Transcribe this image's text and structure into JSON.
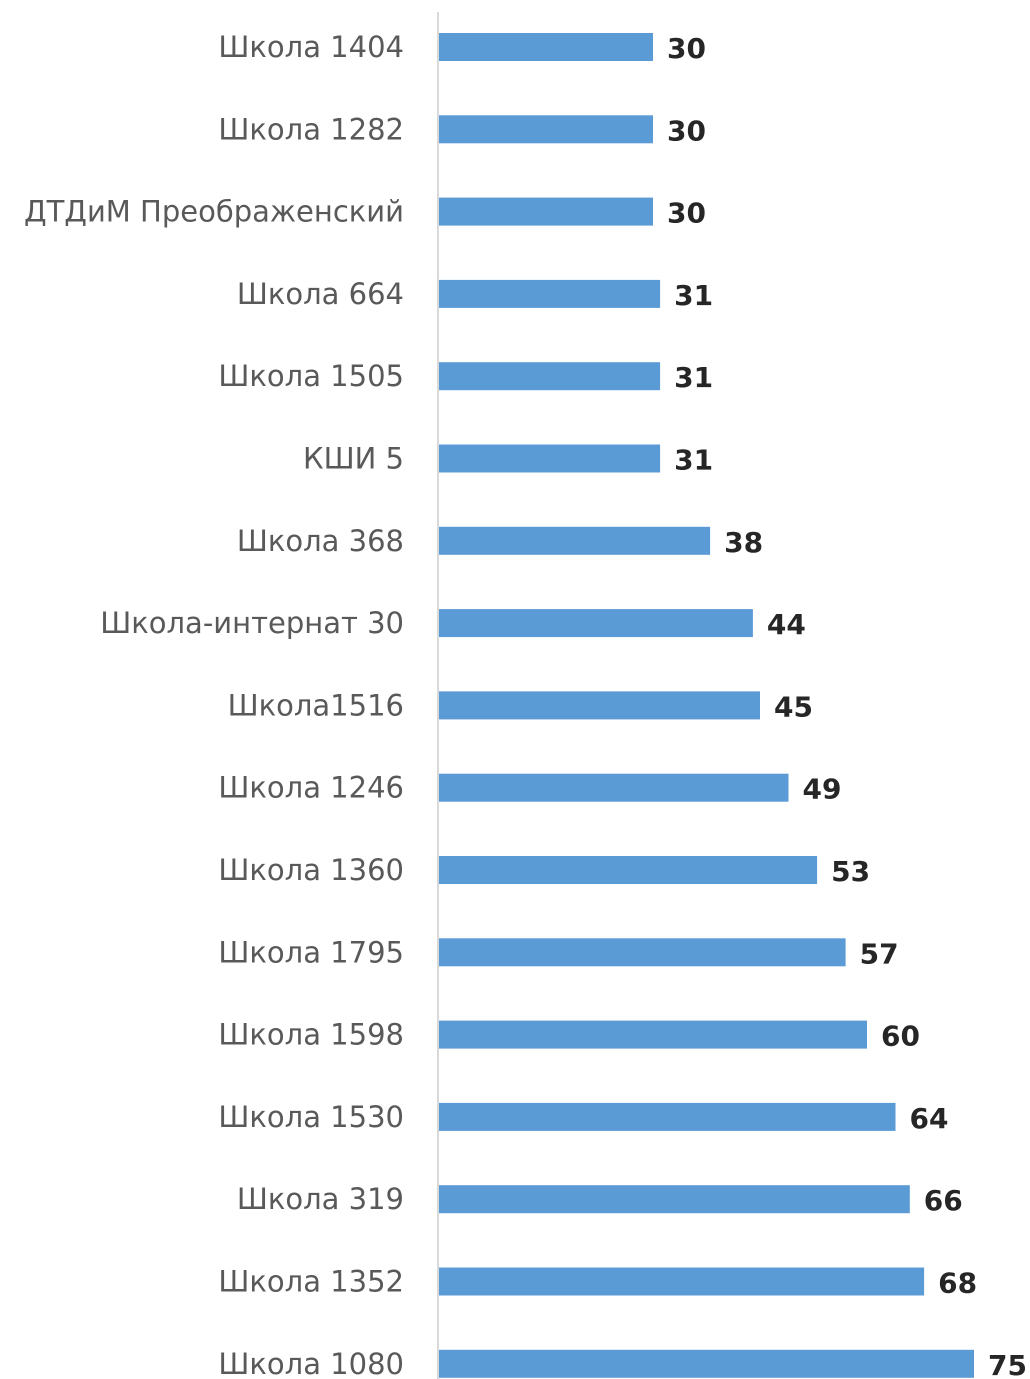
{
  "chart_data": {
    "type": "bar",
    "orientation": "horizontal",
    "title": "",
    "xlabel": "",
    "ylabel": "",
    "categories": [
      "Школа 1404",
      "Школа 1282",
      "ДТДиМ Преображенский",
      "Школа 664",
      "Школа 1505",
      "КШИ 5",
      "Школа 368",
      "Школа-интернат 30",
      "Школа1516",
      "Школа 1246",
      "Школа 1360",
      "Школа 1795",
      "Школа 1598",
      "Школа 1530",
      "Школа 319",
      "Школа 1352",
      "Школа 1080"
    ],
    "values": [
      30,
      30,
      30,
      31,
      31,
      31,
      38,
      44,
      45,
      49,
      53,
      57,
      60,
      64,
      66,
      68,
      75
    ],
    "xlim": [
      0,
      75
    ],
    "grid": false,
    "legend": "none",
    "data_labels": true,
    "colors": {
      "bar": "#5b9bd5",
      "axis": "#d9d9d9",
      "category_text": "#595959",
      "value_text": "#262626"
    }
  }
}
